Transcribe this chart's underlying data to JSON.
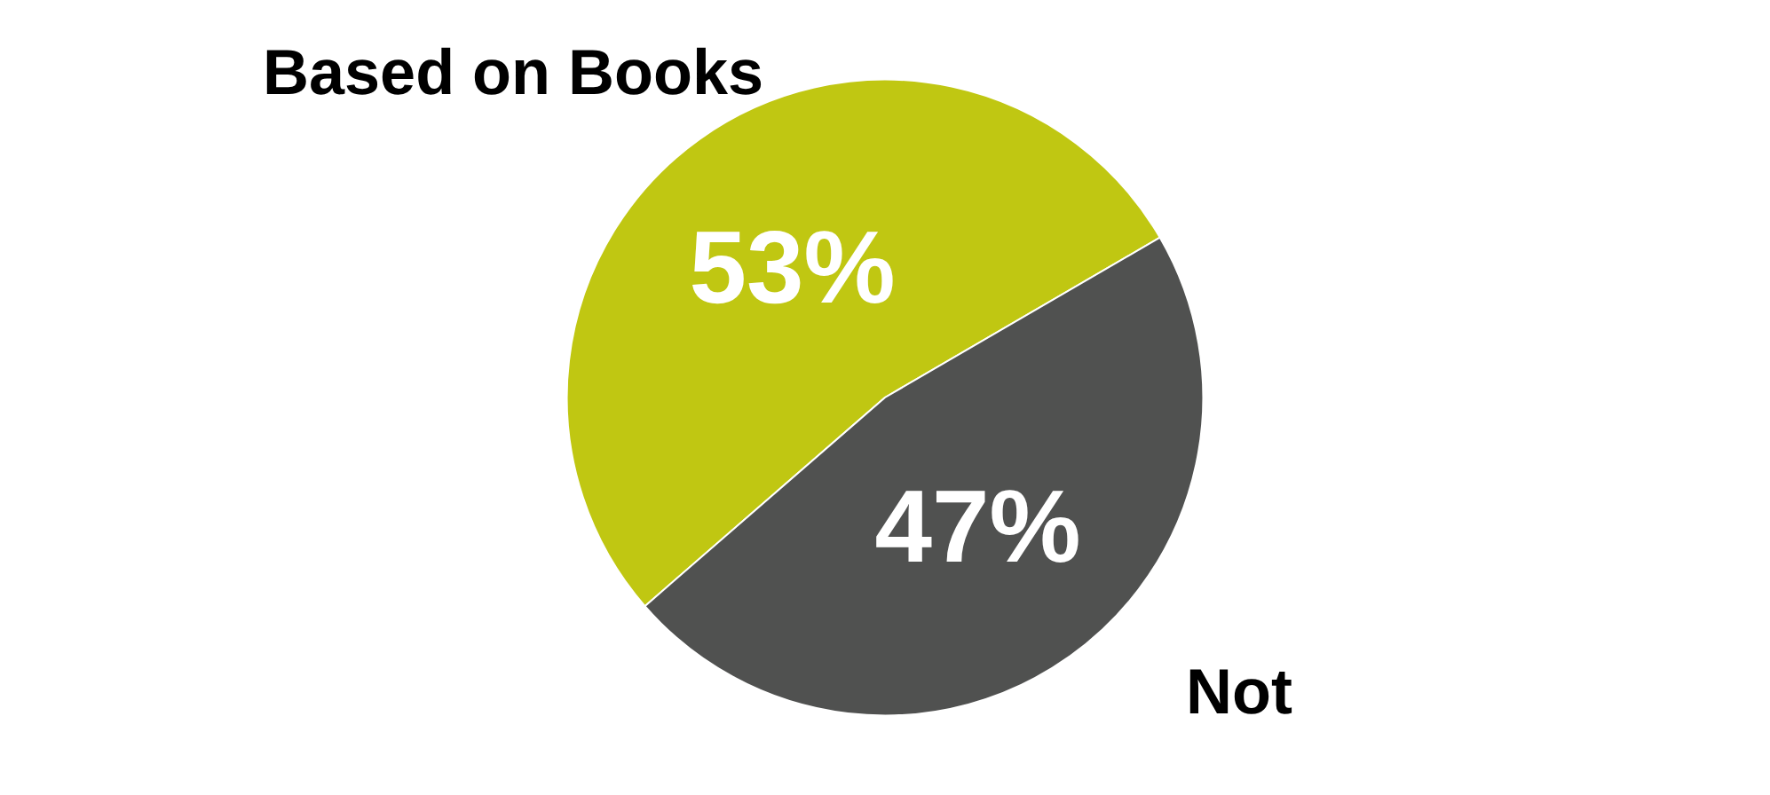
{
  "chart_data": {
    "type": "pie",
    "categories": [
      "Based on Books",
      "Not"
    ],
    "values": [
      53,
      47
    ],
    "colors": [
      "#c0c712",
      "#505150"
    ],
    "value_labels": [
      "53%",
      "47%"
    ],
    "legend": false
  }
}
